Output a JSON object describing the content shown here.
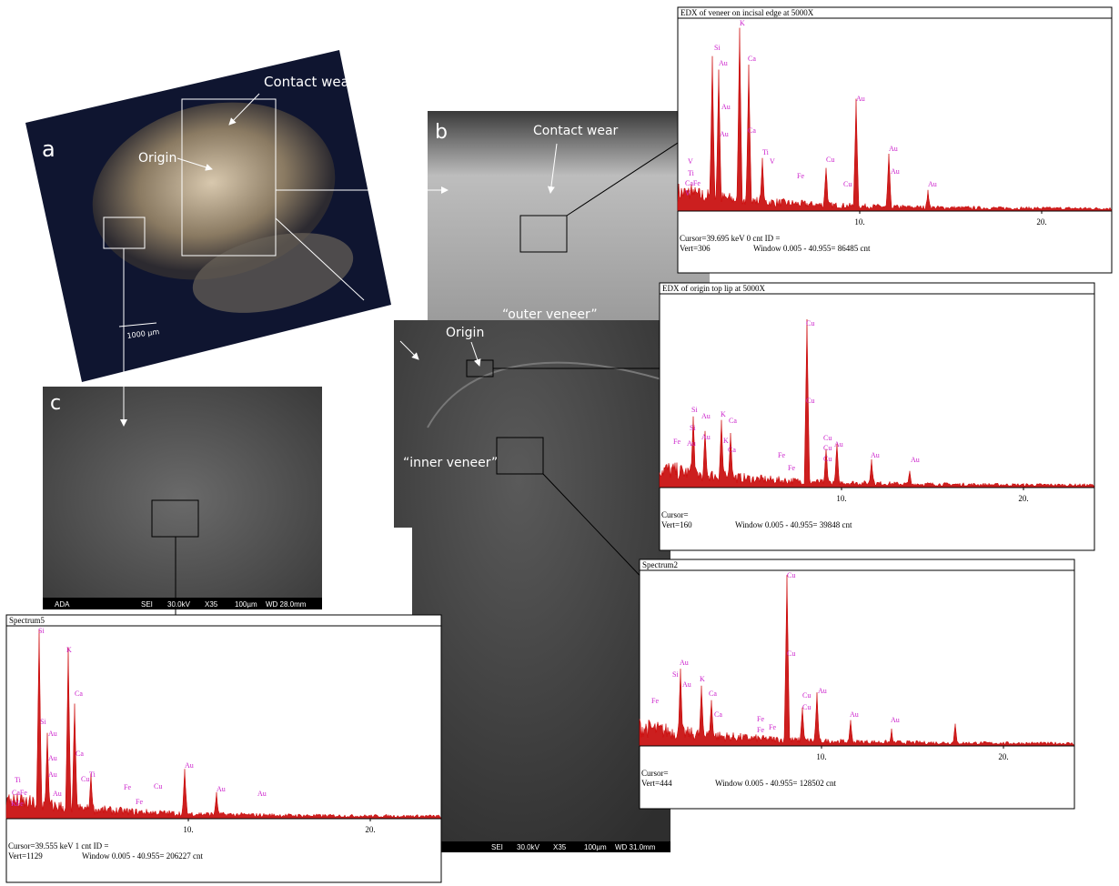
{
  "panels": {
    "a": {
      "label": "a",
      "contact_wear": "Contact wear",
      "origin": "Origin",
      "scale": "1000 µm"
    },
    "b": {
      "label": "b",
      "contact_wear": "Contact wear"
    },
    "c": {
      "label": "c",
      "footer": [
        "ADA",
        "SEI",
        "30.0kV",
        "X35",
        "100µm",
        "WD 28.0mm"
      ]
    },
    "middle": {
      "outer": "“outer veneer”",
      "origin": "Origin",
      "inner": "“inner veneer”",
      "footer": [
        "SEI",
        "30.0kV",
        "X35",
        "100µm",
        "WD 31.0mm"
      ]
    }
  },
  "spectra": [
    {
      "title": "EDX of veneer on incisal edge at 5000X",
      "xticks": [
        {
          "value": 10,
          "label": "10."
        },
        {
          "value": 20,
          "label": "20."
        }
      ],
      "cursor": "Cursor=39.695 keV  0 cnt  ID =",
      "vert": "Vert=306",
      "window": "Window 0.005 - 40.955=   86485 cnt",
      "peak_labels": [
        "Si",
        "K",
        "Au",
        "Ca",
        "Au",
        "Au",
        "Ca",
        "Ti",
        "V",
        "Fe",
        "Cu",
        "Au",
        "Cu",
        "Au",
        "Au",
        "Au",
        "V",
        "Ti",
        "CaFe",
        "V"
      ]
    },
    {
      "title": "EDX of origin top lip at 5000X",
      "xticks": [
        {
          "value": 10,
          "label": "10."
        },
        {
          "value": 20,
          "label": "20."
        }
      ],
      "cursor": "Cursor=",
      "vert": "Vert=160",
      "window": "Window 0.005 - 40.955=   39848 cnt",
      "peak_labels": [
        "Cu",
        "Cu",
        "Si",
        "Au",
        "K",
        "Ca",
        "Si",
        "Au",
        "Au",
        "Fe",
        "Cu",
        "Cu",
        "Cu",
        "Au",
        "K",
        "Ca",
        "Fe",
        "Au",
        "Au",
        "Fe"
      ]
    },
    {
      "title": "Spectrum2",
      "xticks": [
        {
          "value": 10,
          "label": "10."
        },
        {
          "value": 20,
          "label": "20."
        }
      ],
      "cursor": "Cursor=",
      "vert": "Vert=444",
      "window": "Window 0.005 - 40.955=   128502 cnt",
      "peak_labels": [
        "Cu",
        "Cu",
        "Au",
        "Si",
        "Au",
        "K",
        "Fe",
        "Ca",
        "Cu",
        "Au",
        "Cu",
        "Ca",
        "Au",
        "Au",
        "Fe",
        "Fe",
        "Fe"
      ]
    },
    {
      "title": "Spectrum5",
      "xticks": [
        {
          "value": 10,
          "label": "10."
        },
        {
          "value": 20,
          "label": "20."
        }
      ],
      "cursor": "Cursor=39.555 keV  1 cnt  ID =",
      "vert": "Vert=1129",
      "window": "Window 0.005 - 40.955=   206227 cnt",
      "peak_labels": [
        "Si",
        "K",
        "Ca",
        "Si",
        "Au",
        "Au",
        "Au",
        "Ca",
        "Ti",
        "Cu",
        "Ti",
        "CaFe",
        "KFe",
        "Au",
        "Fe",
        "Cu",
        "Au",
        "Au",
        "Au",
        "Fe"
      ]
    }
  ]
}
